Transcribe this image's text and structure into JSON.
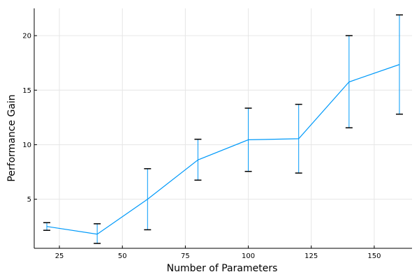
{
  "chart_data": {
    "type": "line",
    "title": "",
    "xlabel": "Number of Parameters",
    "ylabel": "Performance Gain",
    "xlim": [
      15,
      165
    ],
    "ylim": [
      0.5,
      22.5
    ],
    "x_ticks": [
      25,
      50,
      75,
      100,
      125,
      150
    ],
    "y_ticks": [
      5,
      10,
      15,
      20
    ],
    "grid": true,
    "legend": "none",
    "series_color": "#009AFA",
    "errorbar_color": "#000000",
    "series": [
      {
        "x": [
          20,
          40,
          60,
          80,
          100,
          120,
          140,
          160
        ],
        "y": [
          2.5,
          1.8,
          5.0,
          8.6,
          10.45,
          10.55,
          15.75,
          17.35
        ],
        "err_low": [
          2.15,
          0.95,
          2.2,
          6.75,
          7.55,
          7.4,
          11.55,
          12.8
        ],
        "err_high": [
          2.85,
          2.75,
          7.8,
          10.5,
          13.35,
          13.7,
          20.0,
          21.9
        ]
      }
    ]
  }
}
